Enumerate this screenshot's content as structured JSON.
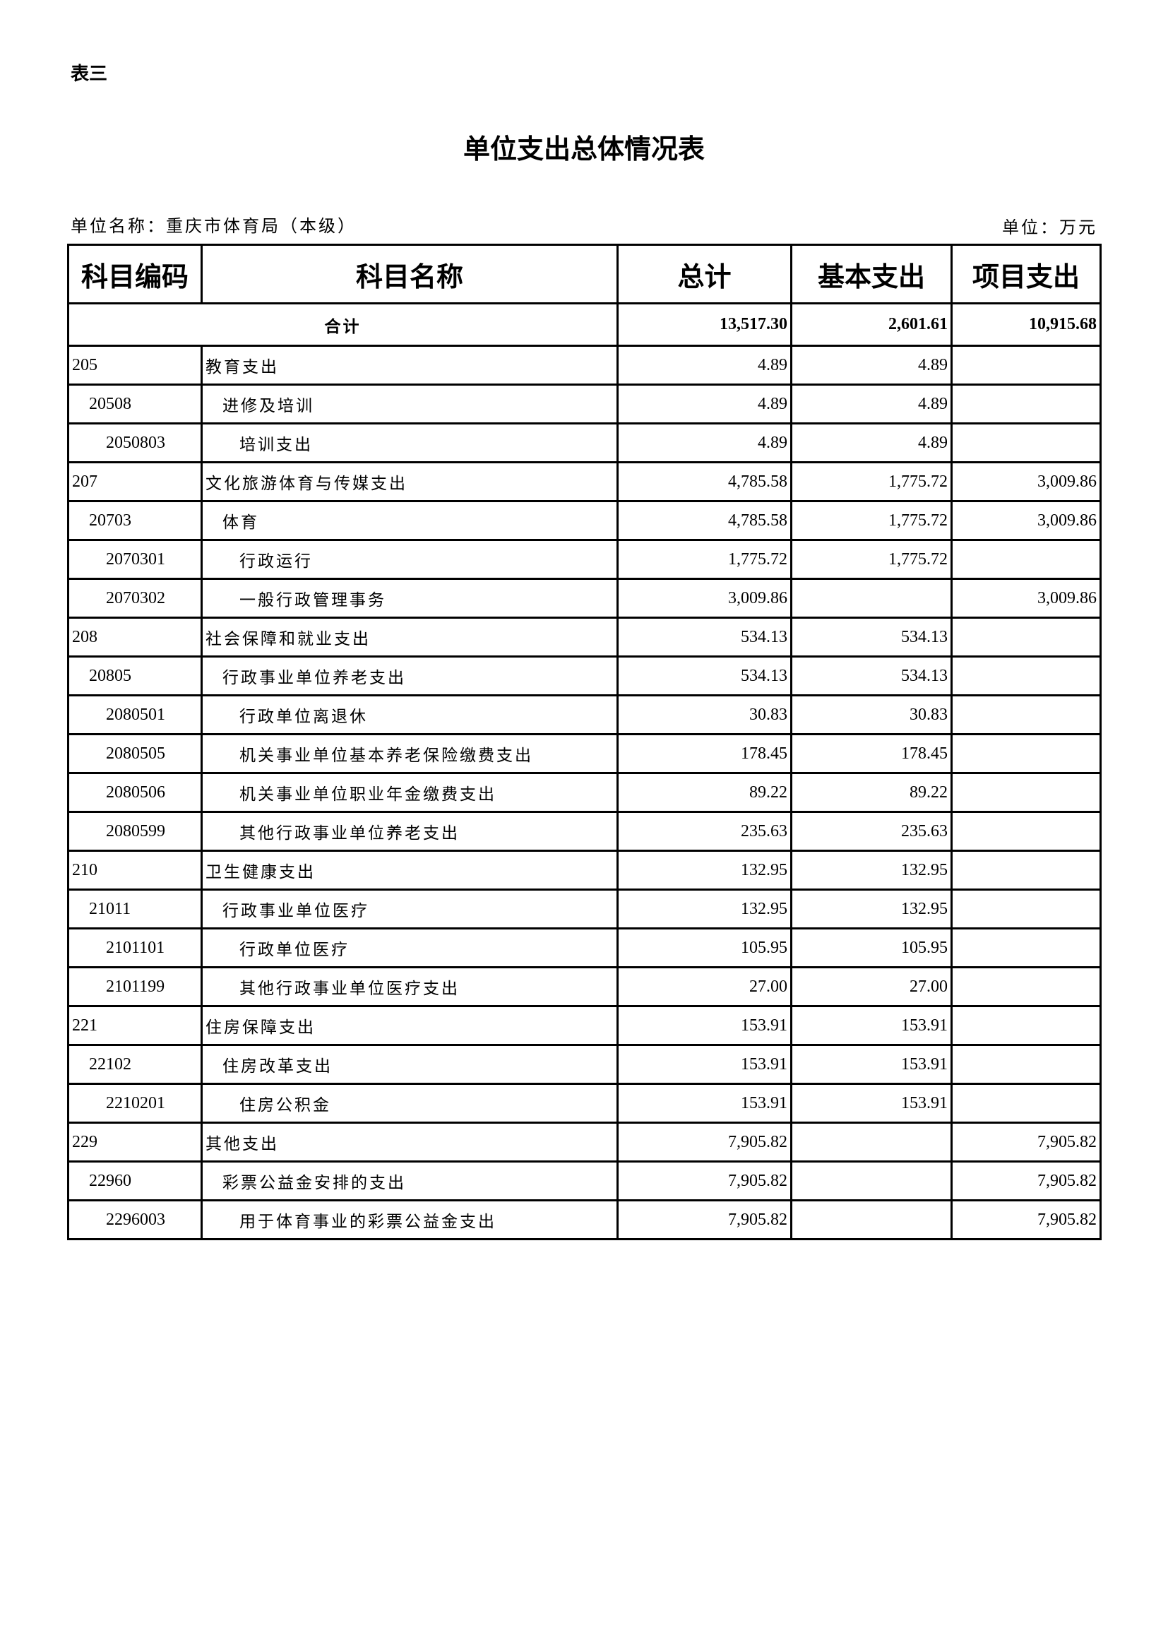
{
  "header": {
    "tag": "表三",
    "title": "单位支出总体情况表",
    "unit_name": "单位名称：重庆市体育局（本级）",
    "unit": "单位：万元"
  },
  "table": {
    "columns": [
      "科目编码",
      "科目名称",
      "总计",
      "基本支出",
      "项目支出"
    ],
    "total": {
      "label": "合计",
      "total": "13,517.30",
      "basic": "2,601.61",
      "project": "10,915.68"
    },
    "rows": [
      {
        "code": "205",
        "name": "教育支出",
        "total": "4.89",
        "basic": "4.89",
        "project": "",
        "level": 1
      },
      {
        "code": "20508",
        "name": "进修及培训",
        "total": "4.89",
        "basic": "4.89",
        "project": "",
        "level": 2
      },
      {
        "code": "2050803",
        "name": "培训支出",
        "total": "4.89",
        "basic": "4.89",
        "project": "",
        "level": 3
      },
      {
        "code": "207",
        "name": "文化旅游体育与传媒支出",
        "total": "4,785.58",
        "basic": "1,775.72",
        "project": "3,009.86",
        "level": 1
      },
      {
        "code": "20703",
        "name": "体育",
        "total": "4,785.58",
        "basic": "1,775.72",
        "project": "3,009.86",
        "level": 2
      },
      {
        "code": "2070301",
        "name": "行政运行",
        "total": "1,775.72",
        "basic": "1,775.72",
        "project": "",
        "level": 3
      },
      {
        "code": "2070302",
        "name": "一般行政管理事务",
        "total": "3,009.86",
        "basic": "",
        "project": "3,009.86",
        "level": 3
      },
      {
        "code": "208",
        "name": "社会保障和就业支出",
        "total": "534.13",
        "basic": "534.13",
        "project": "",
        "level": 1
      },
      {
        "code": "20805",
        "name": "行政事业单位养老支出",
        "total": "534.13",
        "basic": "534.13",
        "project": "",
        "level": 2
      },
      {
        "code": "2080501",
        "name": "行政单位离退休",
        "total": "30.83",
        "basic": "30.83",
        "project": "",
        "level": 3
      },
      {
        "code": "2080505",
        "name": "机关事业单位基本养老保险缴费支出",
        "total": "178.45",
        "basic": "178.45",
        "project": "",
        "level": 3
      },
      {
        "code": "2080506",
        "name": "机关事业单位职业年金缴费支出",
        "total": "89.22",
        "basic": "89.22",
        "project": "",
        "level": 3
      },
      {
        "code": "2080599",
        "name": "其他行政事业单位养老支出",
        "total": "235.63",
        "basic": "235.63",
        "project": "",
        "level": 3
      },
      {
        "code": "210",
        "name": "卫生健康支出",
        "total": "132.95",
        "basic": "132.95",
        "project": "",
        "level": 1
      },
      {
        "code": "21011",
        "name": "行政事业单位医疗",
        "total": "132.95",
        "basic": "132.95",
        "project": "",
        "level": 2
      },
      {
        "code": "2101101",
        "name": "行政单位医疗",
        "total": "105.95",
        "basic": "105.95",
        "project": "",
        "level": 3
      },
      {
        "code": "2101199",
        "name": "其他行政事业单位医疗支出",
        "total": "27.00",
        "basic": "27.00",
        "project": "",
        "level": 3
      },
      {
        "code": "221",
        "name": "住房保障支出",
        "total": "153.91",
        "basic": "153.91",
        "project": "",
        "level": 1
      },
      {
        "code": "22102",
        "name": "住房改革支出",
        "total": "153.91",
        "basic": "153.91",
        "project": "",
        "level": 2
      },
      {
        "code": "2210201",
        "name": "住房公积金",
        "total": "153.91",
        "basic": "153.91",
        "project": "",
        "level": 3
      },
      {
        "code": "229",
        "name": "其他支出",
        "total": "7,905.82",
        "basic": "",
        "project": "7,905.82",
        "level": 1
      },
      {
        "code": "22960",
        "name": "彩票公益金安排的支出",
        "total": "7,905.82",
        "basic": "",
        "project": "7,905.82",
        "level": 2
      },
      {
        "code": "2296003",
        "name": "用于体育事业的彩票公益金支出",
        "total": "7,905.82",
        "basic": "",
        "project": "7,905.82",
        "level": 3
      }
    ]
  }
}
